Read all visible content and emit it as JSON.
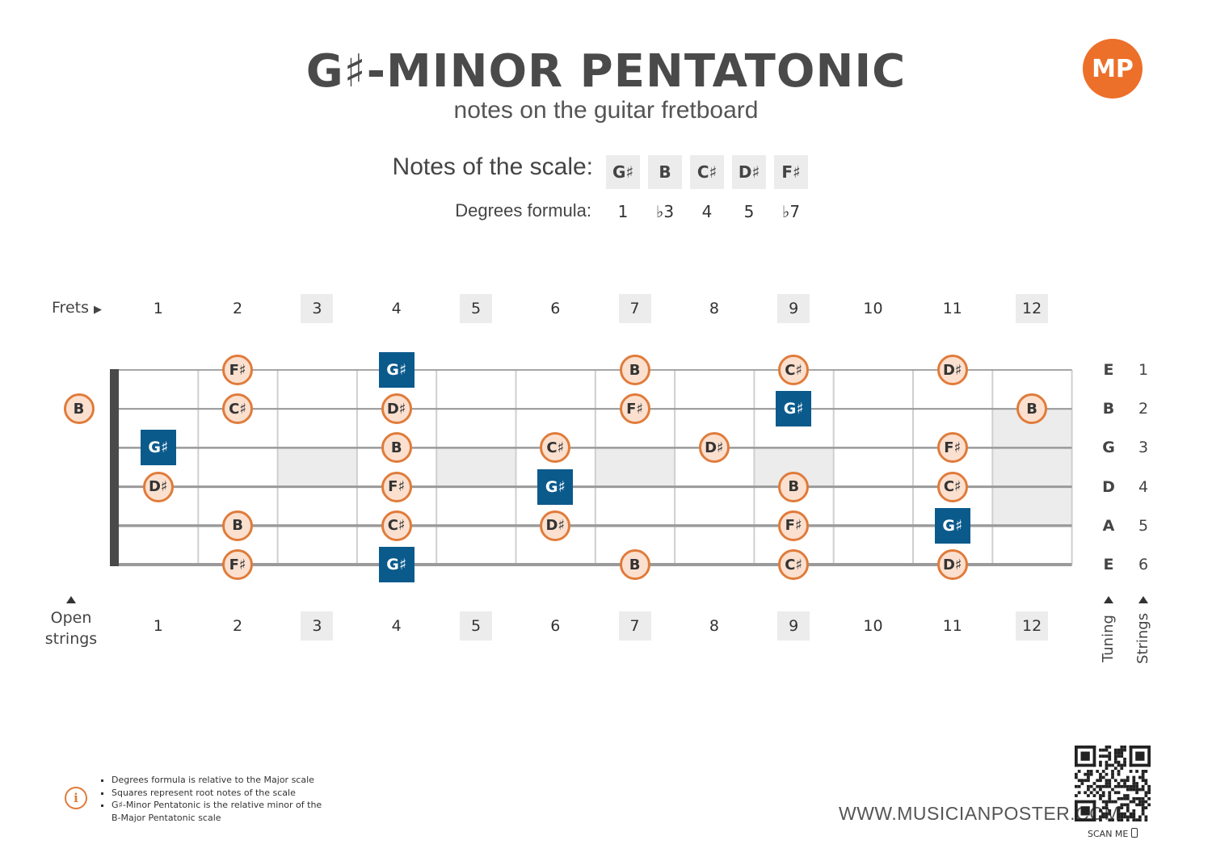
{
  "header": {
    "title": "G♯-MINOR PENTATONIC",
    "subtitle": "notes on the guitar fretboard",
    "logo_text": "MP",
    "logo_color": "#ec6f2a"
  },
  "scale": {
    "label": "Notes of the scale:",
    "notes": [
      "G♯",
      "B",
      "C♯",
      "D♯",
      "F♯"
    ],
    "degrees_label": "Degrees formula:",
    "degrees": [
      "1",
      "♭3",
      "4",
      "5",
      "♭7"
    ]
  },
  "fretboard": {
    "frets_label": "Frets",
    "fret_numbers": [
      "1",
      "2",
      "3",
      "4",
      "5",
      "6",
      "7",
      "8",
      "9",
      "10",
      "11",
      "12"
    ],
    "inlay_frets": [
      3,
      5,
      7,
      9,
      12
    ],
    "open_label_line1": "Open",
    "open_label_line2": "strings",
    "tuning_label": "Tuning",
    "strings_label": "Strings",
    "tuning": [
      "E",
      "B",
      "G",
      "D",
      "A",
      "E"
    ],
    "string_numbers": [
      "1",
      "2",
      "3",
      "4",
      "5",
      "6"
    ],
    "colors": {
      "root": "#0b5a8c",
      "note_fill": "#fbe0cf",
      "note_border": "#e07b3a"
    },
    "notes": [
      {
        "string": 1,
        "fret": 2,
        "note": "F♯",
        "root": false
      },
      {
        "string": 1,
        "fret": 4,
        "note": "G♯",
        "root": true
      },
      {
        "string": 1,
        "fret": 7,
        "note": "B",
        "root": false
      },
      {
        "string": 1,
        "fret": 9,
        "note": "C♯",
        "root": false
      },
      {
        "string": 1,
        "fret": 11,
        "note": "D♯",
        "root": false
      },
      {
        "string": 2,
        "fret": 0,
        "note": "B",
        "root": false
      },
      {
        "string": 2,
        "fret": 2,
        "note": "C♯",
        "root": false
      },
      {
        "string": 2,
        "fret": 4,
        "note": "D♯",
        "root": false
      },
      {
        "string": 2,
        "fret": 7,
        "note": "F♯",
        "root": false
      },
      {
        "string": 2,
        "fret": 9,
        "note": "G♯",
        "root": true
      },
      {
        "string": 2,
        "fret": 12,
        "note": "B",
        "root": false
      },
      {
        "string": 3,
        "fret": 1,
        "note": "G♯",
        "root": true
      },
      {
        "string": 3,
        "fret": 4,
        "note": "B",
        "root": false
      },
      {
        "string": 3,
        "fret": 6,
        "note": "C♯",
        "root": false
      },
      {
        "string": 3,
        "fret": 8,
        "note": "D♯",
        "root": false
      },
      {
        "string": 3,
        "fret": 11,
        "note": "F♯",
        "root": false
      },
      {
        "string": 4,
        "fret": 1,
        "note": "D♯",
        "root": false
      },
      {
        "string": 4,
        "fret": 4,
        "note": "F♯",
        "root": false
      },
      {
        "string": 4,
        "fret": 6,
        "note": "G♯",
        "root": true
      },
      {
        "string": 4,
        "fret": 9,
        "note": "B",
        "root": false
      },
      {
        "string": 4,
        "fret": 11,
        "note": "C♯",
        "root": false
      },
      {
        "string": 5,
        "fret": 2,
        "note": "B",
        "root": false
      },
      {
        "string": 5,
        "fret": 4,
        "note": "C♯",
        "root": false
      },
      {
        "string": 5,
        "fret": 6,
        "note": "D♯",
        "root": false
      },
      {
        "string": 5,
        "fret": 9,
        "note": "F♯",
        "root": false
      },
      {
        "string": 5,
        "fret": 11,
        "note": "G♯",
        "root": true
      },
      {
        "string": 6,
        "fret": 2,
        "note": "F♯",
        "root": false
      },
      {
        "string": 6,
        "fret": 4,
        "note": "G♯",
        "root": true
      },
      {
        "string": 6,
        "fret": 7,
        "note": "B",
        "root": false
      },
      {
        "string": 6,
        "fret": 9,
        "note": "C♯",
        "root": false
      },
      {
        "string": 6,
        "fret": 11,
        "note": "D♯",
        "root": false
      }
    ]
  },
  "footer": {
    "notes": [
      "Degrees formula is relative to the Major scale",
      "Squares represent root notes of the scale",
      "G♯-Minor Pentatonic is the relative minor of the B-Major Pentatonic scale"
    ],
    "website": "WWW.MUSICIANPOSTER.COM",
    "scan_label": "SCAN ME"
  }
}
